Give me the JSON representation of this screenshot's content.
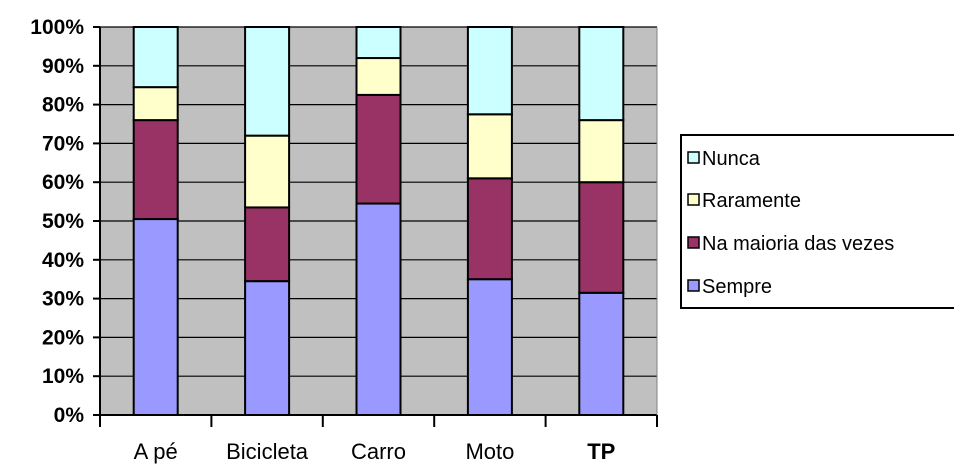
{
  "chart_data": {
    "type": "bar",
    "stacked": true,
    "percent_stacked": true,
    "categories": [
      "A pé",
      "Bicicleta",
      "Carro",
      "Moto",
      "TP"
    ],
    "series": [
      {
        "name": "Sempre",
        "color": "#9999ff",
        "values": [
          50.5,
          34.5,
          54.5,
          35.0,
          31.5
        ]
      },
      {
        "name": "Na maioria das vezes",
        "color": "#993366",
        "values": [
          25.5,
          19.0,
          28.0,
          26.0,
          28.5
        ]
      },
      {
        "name": "Raramente",
        "color": "#ffffcc",
        "values": [
          8.5,
          18.5,
          9.5,
          16.5,
          16.0
        ]
      },
      {
        "name": "Nunca",
        "color": "#ccffff",
        "values": [
          15.5,
          28.0,
          8.0,
          22.5,
          24.0
        ]
      }
    ],
    "y_ticks": [
      "0%",
      "10%",
      "20%",
      "30%",
      "40%",
      "50%",
      "60%",
      "70%",
      "80%",
      "90%",
      "100%"
    ],
    "ylim": [
      0,
      100
    ],
    "grid": true,
    "plot_background": "#c0c0c0",
    "legend_position": "right",
    "legend_order": [
      "Nunca",
      "Raramente",
      "Na maioria das vezes",
      "Sempre"
    ],
    "bold_categories": [
      "TP"
    ]
  }
}
